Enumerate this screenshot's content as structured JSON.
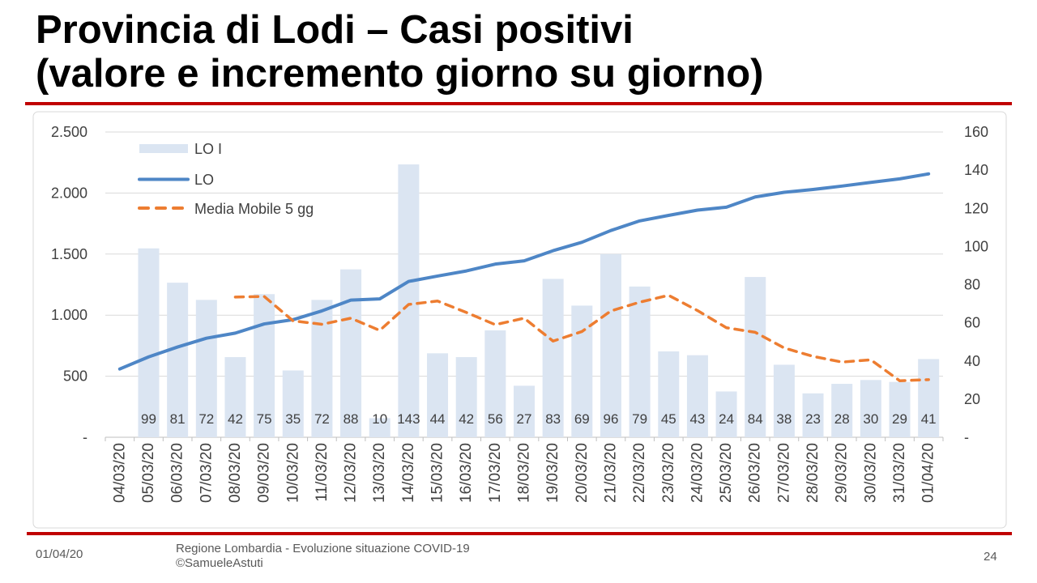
{
  "title": {
    "line1": "Provincia di Lodi – Casi positivi",
    "line2": "(valore e incremento giorno su giorno)"
  },
  "footer": {
    "date": "01/04/20",
    "caption_line1": "Regione Lombardia - Evoluzione situazione COVID-19",
    "caption_line2": "©SamueleAstuti",
    "page_number": "24"
  },
  "colors": {
    "bar_fill": "#dbe5f2",
    "lo_line": "#4e86c6",
    "ma_line": "#ed7d31",
    "grid": "#d9d9d9",
    "axis_line": "#bfbfbf",
    "tick_text": "#404040",
    "divider_red": "#c00000",
    "frame_border": "#d9d9d9"
  },
  "chart_data": {
    "type": "combo",
    "categories": [
      "04/03/20",
      "05/03/20",
      "06/03/20",
      "07/03/20",
      "08/03/20",
      "09/03/20",
      "10/03/20",
      "11/03/20",
      "12/03/20",
      "13/03/20",
      "14/03/20",
      "15/03/20",
      "16/03/20",
      "17/03/20",
      "18/03/20",
      "19/03/20",
      "20/03/20",
      "21/03/20",
      "22/03/20",
      "23/03/20",
      "24/03/20",
      "25/03/20",
      "26/03/20",
      "27/03/20",
      "28/03/20",
      "29/03/20",
      "30/03/20",
      "31/03/20",
      "01/04/20"
    ],
    "series": [
      {
        "name": "LO I",
        "type": "bar",
        "axis": "right",
        "values": [
          null,
          99,
          81,
          72,
          42,
          75,
          35,
          72,
          88,
          10,
          143,
          44,
          42,
          56,
          27,
          83,
          69,
          96,
          79,
          45,
          43,
          24,
          84,
          38,
          23,
          28,
          30,
          29,
          41
        ]
      },
      {
        "name": "LO",
        "type": "line",
        "axis": "left",
        "values": [
          559,
          658,
          739,
          811,
          853,
          928,
          963,
          1035,
          1123,
          1133,
          1276,
          1320,
          1362,
          1418,
          1445,
          1528,
          1597,
          1693,
          1772,
          1817,
          1860,
          1884,
          1968,
          2006,
          2029,
          2057,
          2087,
          2116,
          2157
        ]
      },
      {
        "name": "Media Mobile 5 gg",
        "type": "line",
        "dashed": true,
        "axis": "right",
        "values": [
          null,
          null,
          null,
          null,
          73.5,
          73.8,
          61,
          59.2,
          62.4,
          56,
          69.6,
          71.4,
          65.4,
          59,
          62.4,
          50.4,
          55.4,
          66.2,
          70.8,
          74.4,
          66.4,
          57.4,
          55,
          46.8,
          42.4,
          39.4,
          40.6,
          29.6,
          30.2
        ]
      }
    ],
    "left_axis": {
      "ticks": [
        "2.500",
        "2.000",
        "1.500",
        "1.000",
        "500",
        "-"
      ],
      "min": 0,
      "max": 2500
    },
    "right_axis": {
      "ticks": [
        "160",
        "140",
        "120",
        "100",
        "80",
        "60",
        "40",
        "20",
        "-"
      ],
      "min": 0,
      "max": 160
    },
    "bar_labels_visible": true,
    "legend_position": "top-left-inside",
    "grid": "horizontal"
  }
}
